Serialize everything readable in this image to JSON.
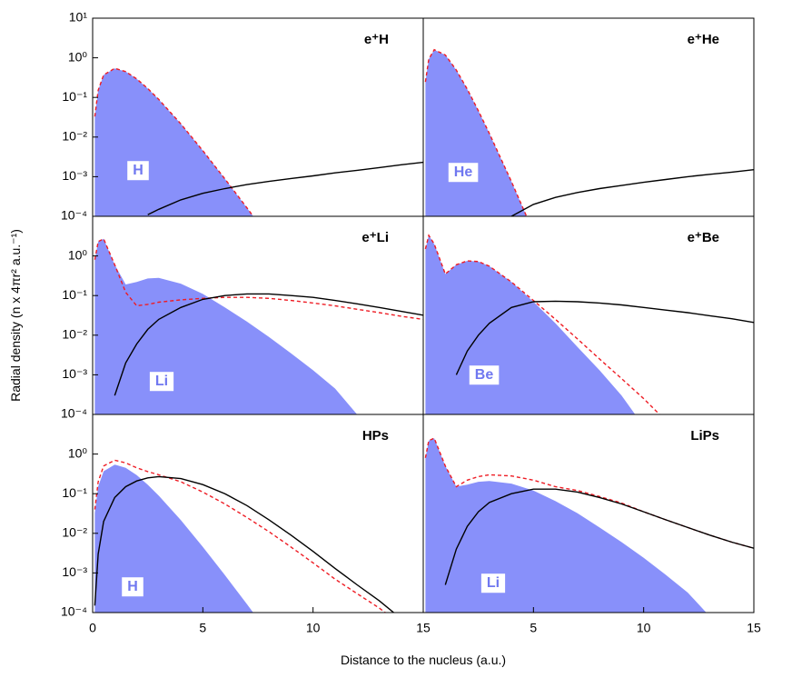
{
  "figure": {
    "xlabel": "Distance to the nucleus (a.u.)",
    "ylabel": "Radial density (n x 4πr² a.u.⁻¹)"
  },
  "chart_data": [
    {
      "type": "line",
      "title": "e⁺H",
      "inset_label": "H",
      "log_y": true,
      "x": [
        0.1,
        0.25,
        0.5,
        1,
        1.5,
        2,
        2.5,
        3,
        4,
        5,
        6,
        7,
        8,
        9,
        10,
        11,
        12,
        13,
        14,
        15
      ],
      "xlim": [
        0,
        15
      ],
      "ylim": [
        0.0001,
        10
      ],
      "yticks": [
        {
          "value": 0.0001,
          "label": "10⁻⁴"
        },
        {
          "value": 0.001,
          "label": "10⁻³"
        },
        {
          "value": 0.01,
          "label": "10⁻²"
        },
        {
          "value": 0.1,
          "label": "10⁻¹"
        },
        {
          "value": 1,
          "label": "10⁰"
        },
        {
          "value": 10,
          "label": "10¹"
        }
      ],
      "series": [
        {
          "color": "#8890fa",
          "fill": true,
          "values": [
            0.033,
            0.152,
            0.368,
            0.541,
            0.448,
            0.293,
            0.168,
            0.0892,
            0.0215,
            0.00454,
            0.00088,
            0.000163,
            2.9e-05,
            null,
            null,
            null,
            null,
            null,
            null,
            null
          ]
        },
        {
          "color": "#ee1c24",
          "dash": true,
          "values": [
            0.033,
            0.152,
            0.368,
            0.541,
            0.448,
            0.293,
            0.168,
            0.0892,
            0.0215,
            0.00454,
            0.00088,
            0.000163,
            2.9e-05,
            null,
            null,
            null,
            null,
            null,
            null,
            null
          ]
        },
        {
          "color": "#000000",
          "values": [
            null,
            null,
            null,
            null,
            null,
            null,
            0.00011,
            0.00015,
            0.00026,
            0.00038,
            0.0005,
            0.00063,
            0.00076,
            0.0009,
            0.00105,
            0.00125,
            0.00145,
            0.0017,
            0.002,
            0.0023
          ]
        }
      ]
    },
    {
      "type": "line",
      "title": "e⁺He",
      "inset_label": "He",
      "log_y": true,
      "x": [
        0.1,
        0.25,
        0.5,
        1,
        1.5,
        2,
        2.5,
        3,
        4,
        5,
        6,
        7,
        8,
        9,
        10,
        11,
        12,
        13,
        14,
        15
      ],
      "xlim": [
        0,
        15
      ],
      "ylim": [
        0.0001,
        10
      ],
      "series": [
        {
          "color": "#8890fa",
          "fill": true,
          "values": [
            0.247,
            0.93,
            1.6,
            1.18,
            0.49,
            0.161,
            0.046,
            0.0123,
            0.00075,
            4e-05,
            null,
            null,
            null,
            null,
            null,
            null,
            null,
            null,
            null,
            null
          ]
        },
        {
          "color": "#ee1c24",
          "dash": true,
          "values": [
            0.247,
            0.93,
            1.6,
            1.18,
            0.49,
            0.161,
            0.046,
            0.0123,
            0.00075,
            4e-05,
            null,
            null,
            null,
            null,
            null,
            null,
            null,
            null,
            null,
            null
          ]
        },
        {
          "color": "#000000",
          "values": [
            null,
            null,
            null,
            null,
            null,
            null,
            null,
            null,
            0.0001,
            0.0002,
            0.0003,
            0.0004,
            0.0005,
            0.0006,
            0.00072,
            0.00085,
            0.001,
            0.00115,
            0.0013,
            0.0015
          ]
        }
      ]
    },
    {
      "type": "line",
      "title": "e⁺Li",
      "inset_label": "Li",
      "log_y": true,
      "x": [
        0.1,
        0.25,
        0.5,
        1,
        1.5,
        2,
        2.5,
        3,
        4,
        5,
        6,
        7,
        8,
        9,
        10,
        11,
        12,
        13,
        14,
        15
      ],
      "xlim": [
        0,
        15
      ],
      "ylim": [
        0.0001,
        10
      ],
      "yticks": [
        {
          "value": 0.0001,
          "label": "10⁻⁴"
        },
        {
          "value": 0.001,
          "label": "10⁻³"
        },
        {
          "value": 0.01,
          "label": "10⁻²"
        },
        {
          "value": 0.1,
          "label": "10⁻¹"
        },
        {
          "value": 1,
          "label": "10⁰"
        }
      ],
      "series": [
        {
          "color": "#8890fa",
          "fill": true,
          "values": [
            0.8,
            2.3,
            2.7,
            0.6,
            0.19,
            0.22,
            0.27,
            0.28,
            0.2,
            0.11,
            0.05,
            0.022,
            0.009,
            0.0035,
            0.0013,
            0.00045,
            0.0001,
            2e-05,
            null,
            null
          ]
        },
        {
          "color": "#ee1c24",
          "dash": true,
          "values": [
            0.8,
            2.3,
            2.7,
            0.6,
            0.12,
            0.055,
            0.06,
            0.068,
            0.078,
            0.085,
            0.09,
            0.09,
            0.085,
            0.075,
            0.065,
            0.055,
            0.045,
            0.037,
            0.03,
            0.025
          ]
        },
        {
          "color": "#000000",
          "values": [
            null,
            null,
            null,
            0.0003,
            0.002,
            0.006,
            0.014,
            0.025,
            0.05,
            0.08,
            0.1,
            0.11,
            0.11,
            0.1,
            0.09,
            0.075,
            0.062,
            0.05,
            0.04,
            0.032
          ]
        }
      ]
    },
    {
      "type": "line",
      "title": "e⁺Be",
      "inset_label": "Be",
      "log_y": true,
      "x": [
        0.1,
        0.25,
        0.5,
        1,
        1.5,
        2,
        2.5,
        3,
        4,
        5,
        6,
        7,
        8,
        9,
        10,
        11,
        12,
        13,
        14,
        15
      ],
      "xlim": [
        0,
        15
      ],
      "ylim": [
        0.0001,
        10
      ],
      "series": [
        {
          "color": "#8890fa",
          "fill": true,
          "values": [
            1.5,
            3.3,
            2.0,
            0.35,
            0.6,
            0.75,
            0.72,
            0.55,
            0.22,
            0.07,
            0.02,
            0.005,
            0.0013,
            0.0003,
            5e-05,
            null,
            null,
            null,
            null,
            null
          ]
        },
        {
          "color": "#ee1c24",
          "dash": true,
          "values": [
            1.5,
            3.3,
            2.0,
            0.35,
            0.6,
            0.75,
            0.72,
            0.55,
            0.22,
            0.075,
            0.025,
            0.008,
            0.0025,
            0.0008,
            0.00025,
            7e-05,
            null,
            null,
            null,
            null
          ]
        },
        {
          "color": "#000000",
          "values": [
            null,
            null,
            null,
            null,
            0.001,
            0.004,
            0.01,
            0.02,
            0.05,
            0.07,
            0.072,
            0.07,
            0.065,
            0.058,
            0.05,
            0.043,
            0.037,
            0.031,
            0.026,
            0.021
          ]
        }
      ]
    },
    {
      "type": "line",
      "title": "HPs",
      "inset_label": "H",
      "log_y": true,
      "x": [
        0.1,
        0.25,
        0.5,
        1,
        1.5,
        2,
        2.5,
        3,
        4,
        5,
        6,
        7,
        8,
        9,
        10,
        11,
        12,
        13,
        14,
        15
      ],
      "xlim": [
        0,
        15
      ],
      "xticks": [
        0,
        5,
        10,
        15
      ],
      "ylim": [
        0.0001,
        10
      ],
      "yticks": [
        {
          "value": 0.0001,
          "label": "10⁻⁴"
        },
        {
          "value": 0.001,
          "label": "10⁻³"
        },
        {
          "value": 0.01,
          "label": "10⁻²"
        },
        {
          "value": 0.1,
          "label": "10⁻¹"
        },
        {
          "value": 1,
          "label": "10⁰"
        }
      ],
      "series": [
        {
          "color": "#8890fa",
          "fill": true,
          "values": [
            0.033,
            0.152,
            0.368,
            0.541,
            0.448,
            0.293,
            0.168,
            0.0892,
            0.0215,
            0.00454,
            0.00088,
            0.000163,
            2.9e-05,
            null,
            null,
            null,
            null,
            null,
            null,
            null
          ]
        },
        {
          "color": "#ee1c24",
          "dash": true,
          "values": [
            0.04,
            0.2,
            0.5,
            0.7,
            0.6,
            0.45,
            0.36,
            0.3,
            0.2,
            0.11,
            0.055,
            0.025,
            0.011,
            0.0045,
            0.0018,
            0.0007,
            0.0003,
            0.00013,
            5e-05,
            null
          ]
        },
        {
          "color": "#000000",
          "values": [
            0.00015,
            0.003,
            0.02,
            0.08,
            0.15,
            0.21,
            0.25,
            0.27,
            0.24,
            0.17,
            0.1,
            0.05,
            0.022,
            0.009,
            0.0035,
            0.0013,
            0.0005,
            0.0002,
            7e-05,
            null
          ]
        }
      ]
    },
    {
      "type": "line",
      "title": "LiPs",
      "inset_label": "Li",
      "log_y": true,
      "x": [
        0.1,
        0.25,
        0.5,
        1,
        1.5,
        2,
        2.5,
        3,
        4,
        5,
        6,
        7,
        8,
        9,
        10,
        11,
        12,
        13,
        14,
        15
      ],
      "xlim": [
        0,
        15
      ],
      "xticks": [
        5,
        10,
        15
      ],
      "ylim": [
        0.0001,
        10
      ],
      "series": [
        {
          "color": "#8890fa",
          "fill": true,
          "values": [
            0.8,
            2.2,
            2.5,
            0.5,
            0.15,
            0.17,
            0.2,
            0.21,
            0.18,
            0.12,
            0.065,
            0.032,
            0.014,
            0.006,
            0.0024,
            0.0009,
            0.00032,
            8e-05,
            null,
            null
          ]
        },
        {
          "color": "#ee1c24",
          "dash": true,
          "values": [
            0.8,
            2.2,
            2.5,
            0.5,
            0.15,
            0.22,
            0.27,
            0.3,
            0.28,
            0.22,
            0.15,
            0.12,
            0.085,
            0.058,
            0.035,
            0.022,
            0.014,
            0.009,
            0.006,
            0.0042
          ]
        },
        {
          "color": "#000000",
          "values": [
            null,
            null,
            null,
            0.0005,
            0.004,
            0.015,
            0.035,
            0.06,
            0.1,
            0.13,
            0.13,
            0.11,
            0.08,
            0.055,
            0.035,
            0.022,
            0.014,
            0.009,
            0.006,
            0.0042
          ]
        }
      ]
    }
  ]
}
